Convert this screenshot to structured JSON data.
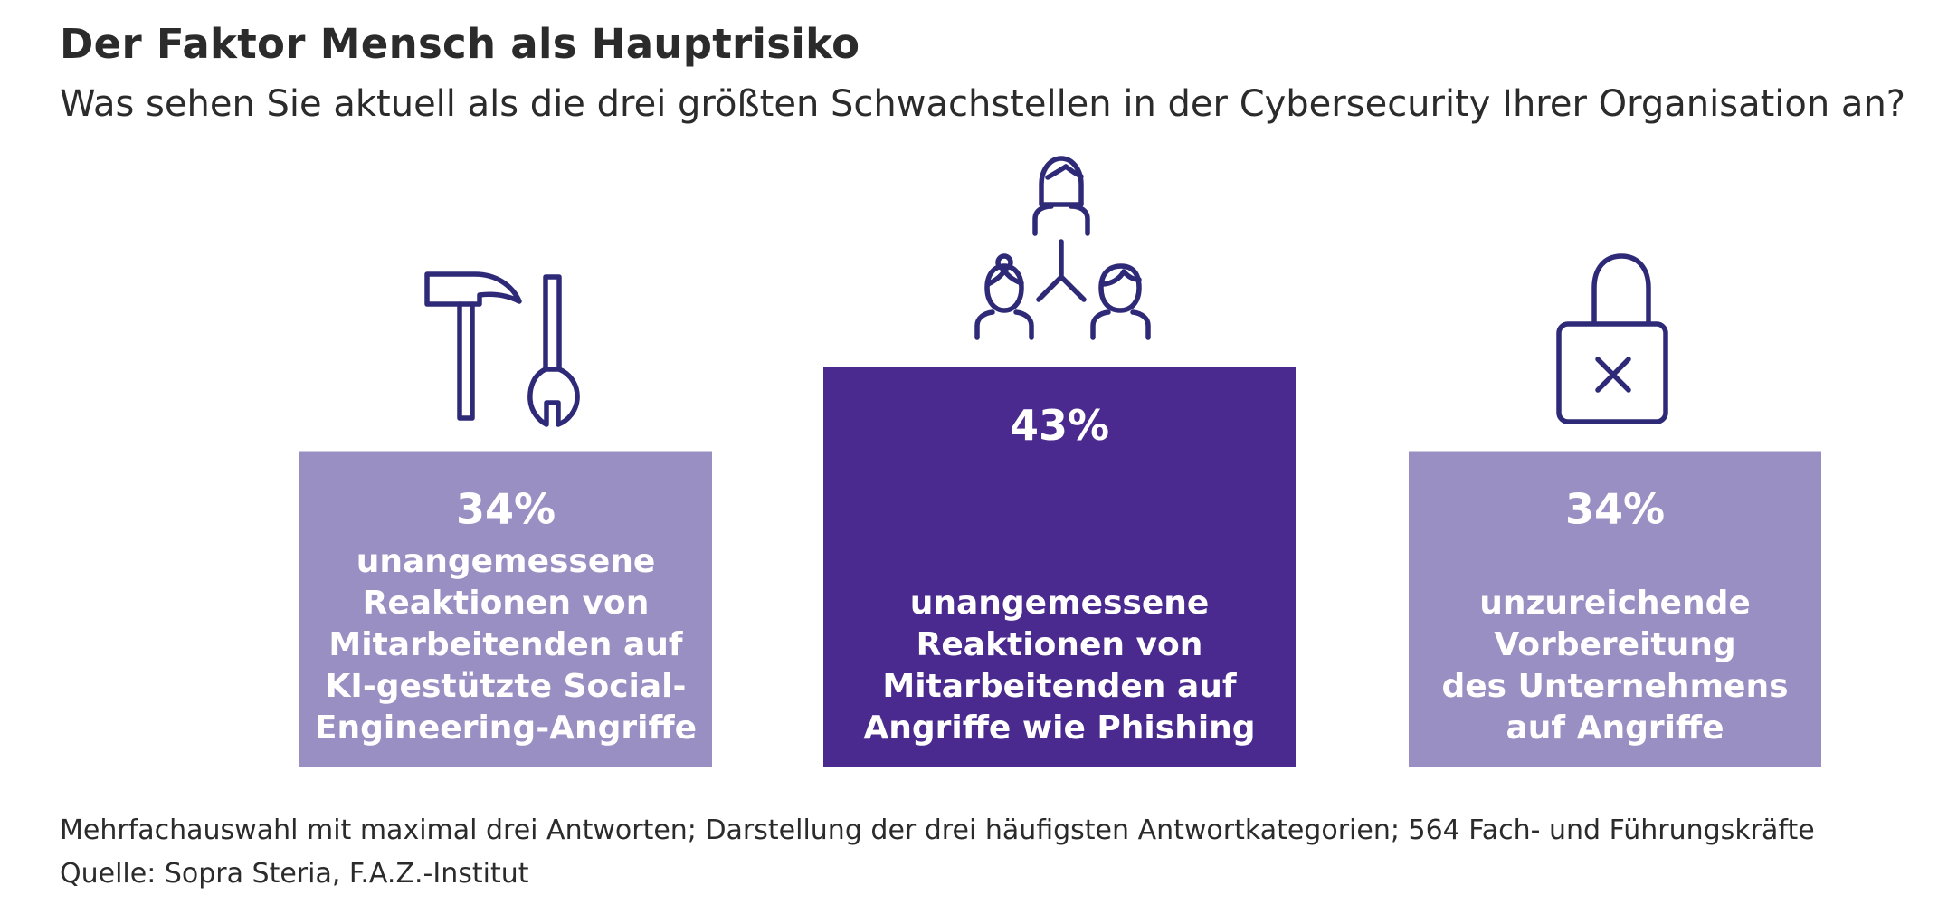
{
  "header": {
    "title": "Der Faktor Mensch als Hauptrisiko",
    "subtitle": "Was sehen Sie aktuell als die drei größten Schwachstellen in der Cybersecurity Ihrer Organisation an?"
  },
  "footer": {
    "note": "Mehrfachauswahl mit maximal drei Antworten; Darstellung der drei häufigsten Antwortkategorien; 564 Fach- und Führungskräfte",
    "source": "Quelle: Sopra Steria, F.A.Z.-Institut"
  },
  "colors": {
    "light_box": "#9a8fc2",
    "dark_box": "#4a2a8e",
    "icon_stroke": "#2e2a78",
    "text": "#2b2b2b"
  },
  "chart_data": {
    "type": "bar",
    "title": "Der Faktor Mensch als Hauptrisiko",
    "unit": "%",
    "categories": [
      "unangemessene Reaktionen von Mitarbeitenden auf KI-gestützte Social-Engineering-Angriffe",
      "unangemessene Reaktionen von Mitarbeitenden auf Angriffe wie Phishing",
      "unzureichende Vorbereitung des Unternehmens auf Angriffe"
    ],
    "values": [
      34,
      43,
      34
    ],
    "value_labels": [
      "34%",
      "43%",
      "34%"
    ],
    "label_lines": [
      [
        "unangemessene",
        "Reaktionen von",
        "Mitarbeitenden auf",
        "KI-gestützte Social-",
        "Engineering-Angriffe"
      ],
      [
        "unangemessene",
        "Reaktionen von",
        "Mitarbeitenden auf",
        "Angriffe wie Phishing"
      ],
      [
        "unzureichende",
        "Vorbereitung",
        "des Unternehmens",
        "auf Angriffe"
      ]
    ],
    "icons": [
      "tools-icon",
      "people-network-icon",
      "lock-x-icon"
    ],
    "highlight_index": 1,
    "ylim": [
      0,
      43
    ]
  }
}
